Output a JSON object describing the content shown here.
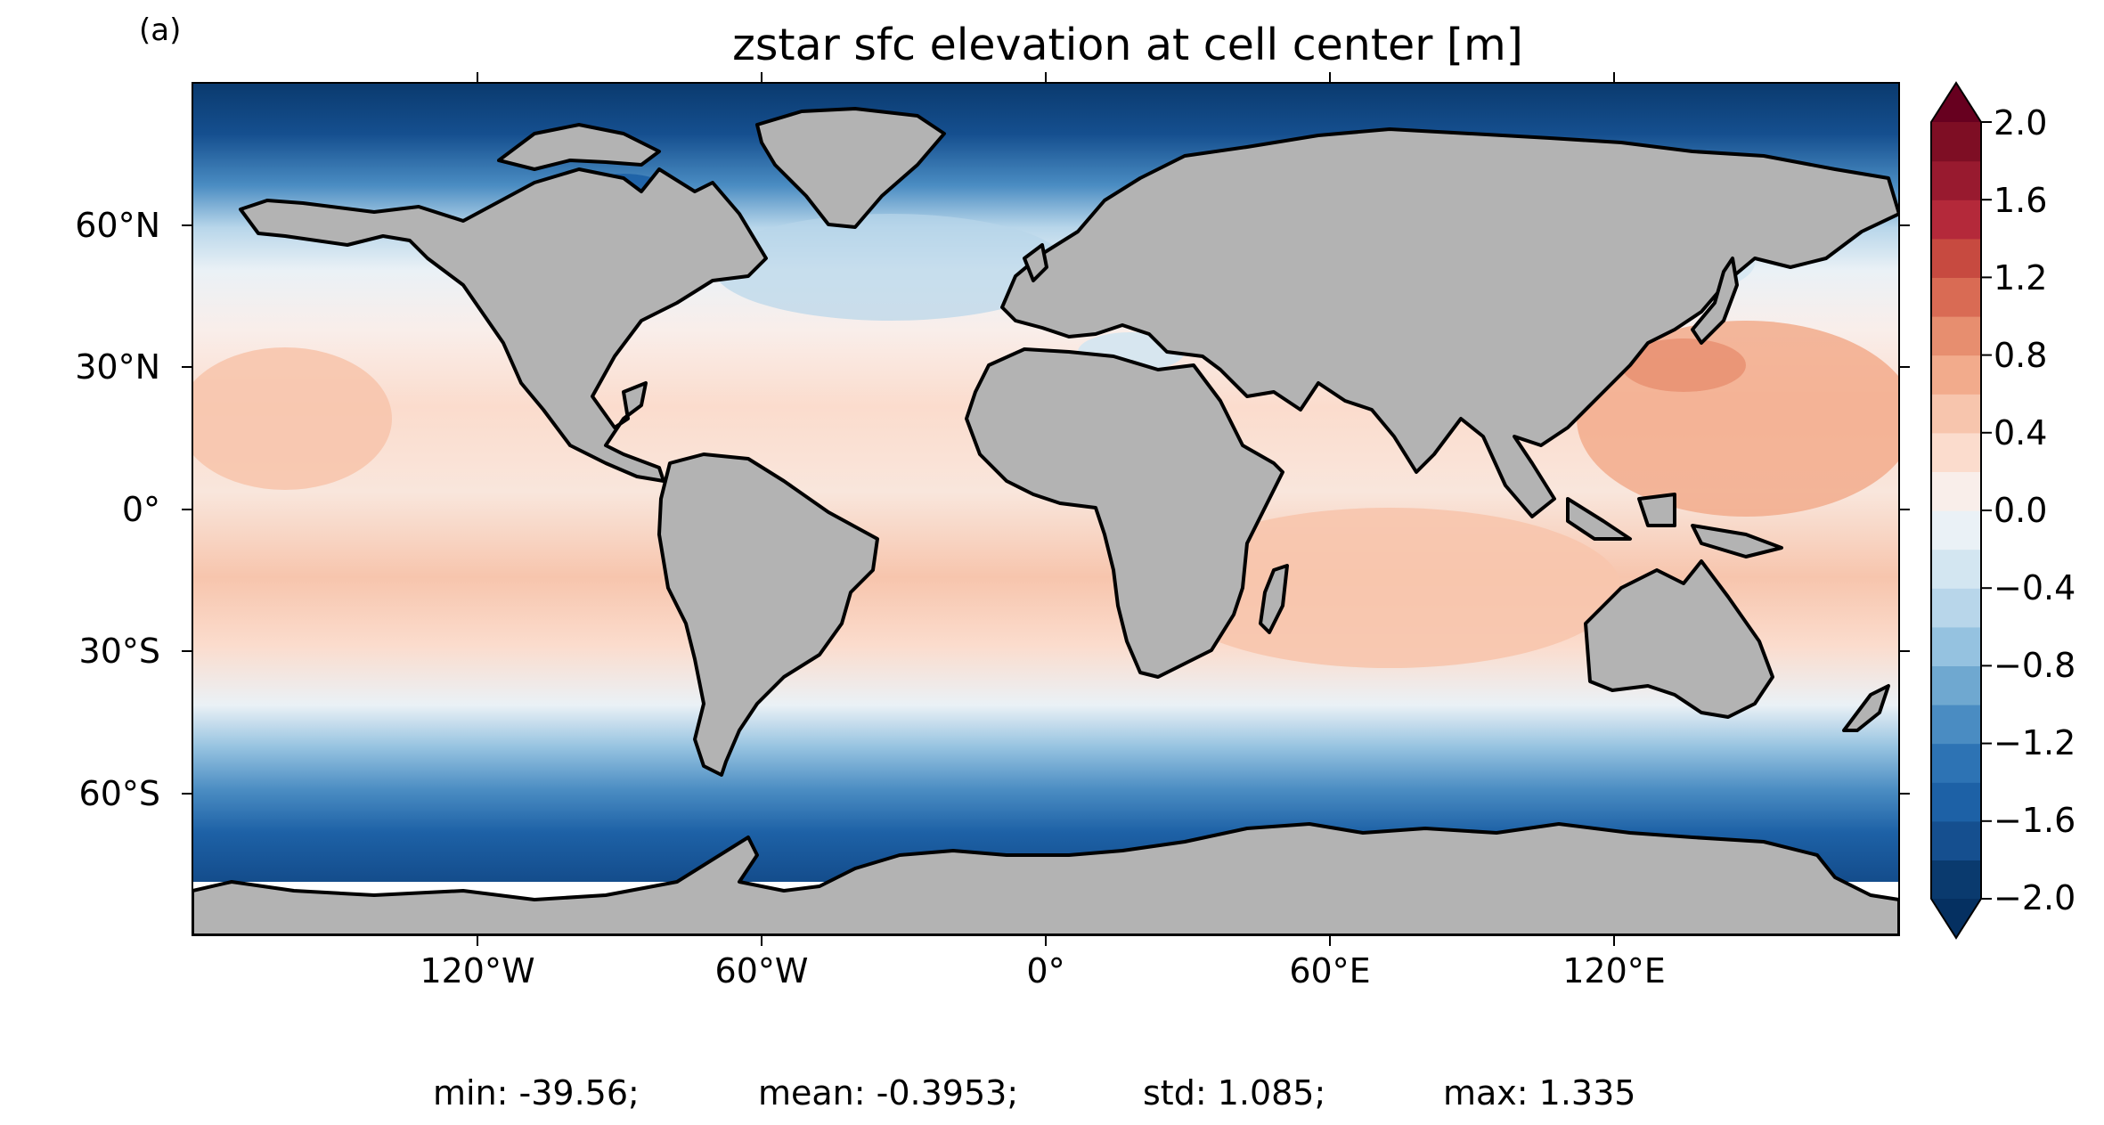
{
  "panel_label": "(a)",
  "title": "zstar sfc elevation at cell center [m]",
  "map": {
    "projection": "PlateCarree",
    "xlim": [
      -180,
      180
    ],
    "ylim": [
      -90,
      90
    ],
    "land_color": "#b3b3b3",
    "coastline_color": "#000000",
    "lon_ticks": [
      "120°W",
      "60°W",
      "0°",
      "60°E",
      "120°E"
    ],
    "lat_ticks": [
      "60°N",
      "30°N",
      "0°",
      "30°S",
      "60°S"
    ]
  },
  "colorbar": {
    "cmap": "RdBu_r",
    "range": [
      -2.0,
      2.0
    ],
    "extend": "both",
    "levels": 20,
    "tick_labels": [
      "2.0",
      "1.6",
      "1.2",
      "0.8",
      "0.4",
      "0.0",
      "−0.4",
      "−0.8",
      "−1.2",
      "−1.6",
      "−2.0"
    ],
    "colors": [
      "#0a3a6e",
      "#154f8f",
      "#1d61a6",
      "#2d73b4",
      "#4a8cc2",
      "#6fa8d0",
      "#95c2e0",
      "#b8d6ea",
      "#d3e6f1",
      "#eaf1f6",
      "#f9eeea",
      "#fbdccd",
      "#f7c5ad",
      "#f2ab8c",
      "#e78e6f",
      "#d96b54",
      "#c74a40",
      "#b4293a",
      "#981a2f",
      "#7e0e24"
    ]
  },
  "stats": {
    "min": "min: -39.56;",
    "mean": "mean: -0.3953;",
    "std": "std: 1.085;",
    "max": "max: 1.335"
  }
}
